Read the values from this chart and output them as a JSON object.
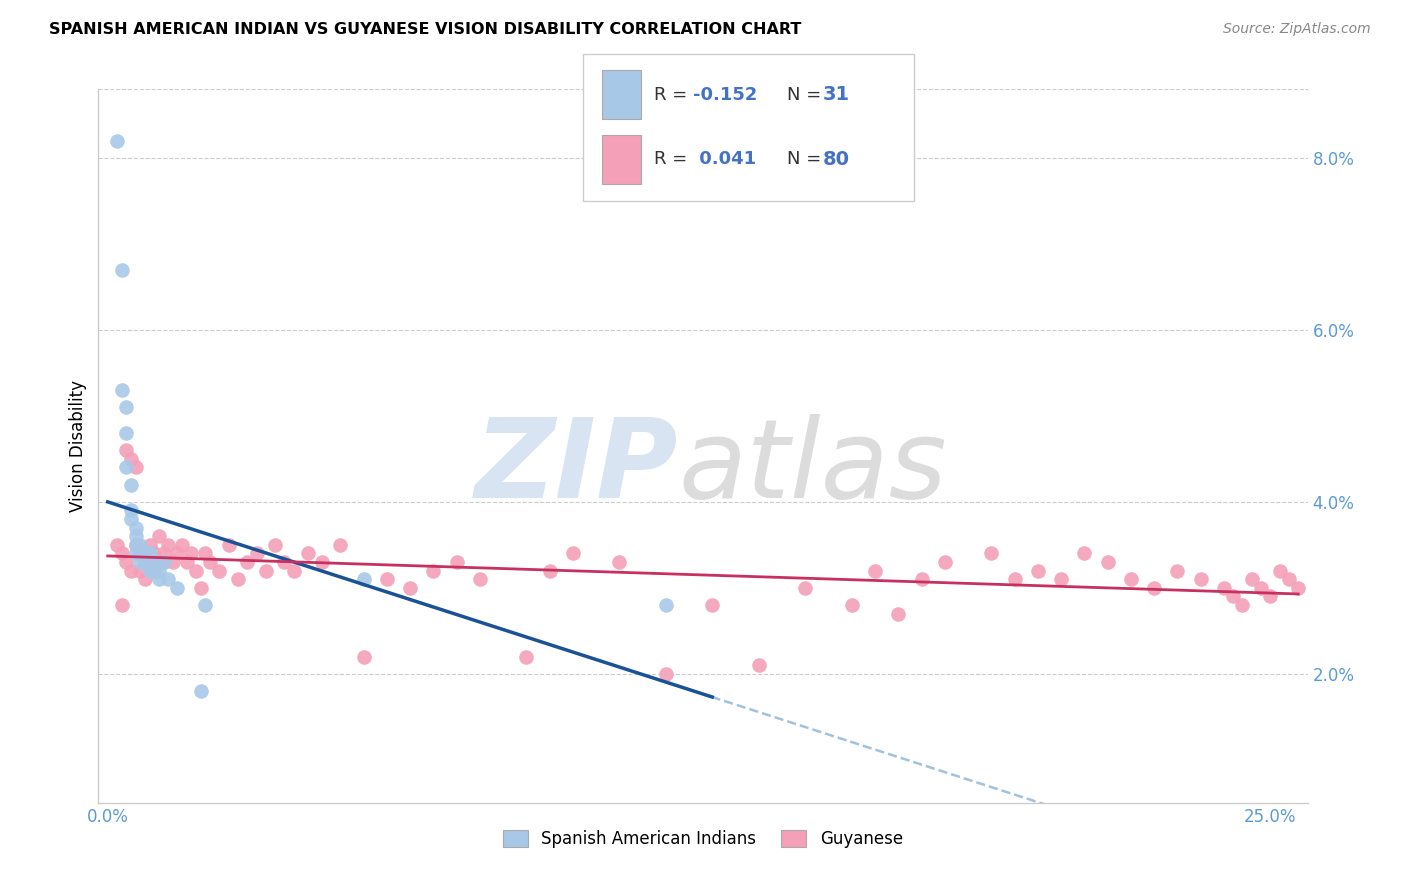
{
  "title": "SPANISH AMERICAN INDIAN VS GUYANESE VISION DISABILITY CORRELATION CHART",
  "source": "Source: ZipAtlas.com",
  "ylabel": "Vision Disability",
  "xlim": [
    -0.002,
    0.258
  ],
  "ylim": [
    0.005,
    0.088
  ],
  "color_blue": "#a8c8e8",
  "color_pink": "#f4a0b8",
  "color_blue_line": "#1a5296",
  "color_pink_line": "#c83060",
  "color_blue_dashed": "#90b8d8",
  "legend_r1": "-0.152",
  "legend_n1": "31",
  "legend_r2": "0.041",
  "legend_n2": "80",
  "spanish_x": [
    0.002,
    0.003,
    0.003,
    0.004,
    0.004,
    0.004,
    0.005,
    0.005,
    0.005,
    0.006,
    0.006,
    0.006,
    0.006,
    0.007,
    0.007,
    0.007,
    0.008,
    0.008,
    0.009,
    0.009,
    0.01,
    0.01,
    0.011,
    0.011,
    0.012,
    0.013,
    0.015,
    0.02,
    0.021,
    0.055,
    0.12
  ],
  "spanish_y": [
    0.082,
    0.067,
    0.053,
    0.051,
    0.048,
    0.044,
    0.042,
    0.039,
    0.038,
    0.037,
    0.036,
    0.035,
    0.034,
    0.035,
    0.034,
    0.033,
    0.034,
    0.033,
    0.034,
    0.032,
    0.033,
    0.032,
    0.032,
    0.031,
    0.033,
    0.031,
    0.03,
    0.018,
    0.028,
    0.031,
    0.028
  ],
  "guyanese_x": [
    0.002,
    0.003,
    0.003,
    0.004,
    0.004,
    0.005,
    0.005,
    0.006,
    0.006,
    0.007,
    0.007,
    0.008,
    0.008,
    0.009,
    0.009,
    0.01,
    0.01,
    0.011,
    0.012,
    0.012,
    0.013,
    0.014,
    0.015,
    0.016,
    0.017,
    0.018,
    0.019,
    0.02,
    0.021,
    0.022,
    0.024,
    0.026,
    0.028,
    0.03,
    0.032,
    0.034,
    0.036,
    0.038,
    0.04,
    0.043,
    0.046,
    0.05,
    0.055,
    0.06,
    0.065,
    0.07,
    0.075,
    0.08,
    0.09,
    0.095,
    0.1,
    0.11,
    0.12,
    0.13,
    0.14,
    0.15,
    0.16,
    0.165,
    0.17,
    0.175,
    0.18,
    0.19,
    0.195,
    0.2,
    0.205,
    0.21,
    0.215,
    0.22,
    0.225,
    0.23,
    0.235,
    0.24,
    0.242,
    0.244,
    0.246,
    0.248,
    0.25,
    0.252,
    0.254,
    0.256
  ],
  "guyanese_y": [
    0.035,
    0.034,
    0.028,
    0.033,
    0.046,
    0.032,
    0.045,
    0.035,
    0.044,
    0.034,
    0.032,
    0.034,
    0.031,
    0.035,
    0.033,
    0.034,
    0.032,
    0.036,
    0.034,
    0.033,
    0.035,
    0.033,
    0.034,
    0.035,
    0.033,
    0.034,
    0.032,
    0.03,
    0.034,
    0.033,
    0.032,
    0.035,
    0.031,
    0.033,
    0.034,
    0.032,
    0.035,
    0.033,
    0.032,
    0.034,
    0.033,
    0.035,
    0.022,
    0.031,
    0.03,
    0.032,
    0.033,
    0.031,
    0.022,
    0.032,
    0.034,
    0.033,
    0.02,
    0.028,
    0.021,
    0.03,
    0.028,
    0.032,
    0.027,
    0.031,
    0.033,
    0.034,
    0.031,
    0.032,
    0.031,
    0.034,
    0.033,
    0.031,
    0.03,
    0.032,
    0.031,
    0.03,
    0.029,
    0.028,
    0.031,
    0.03,
    0.029,
    0.032,
    0.031,
    0.03
  ]
}
